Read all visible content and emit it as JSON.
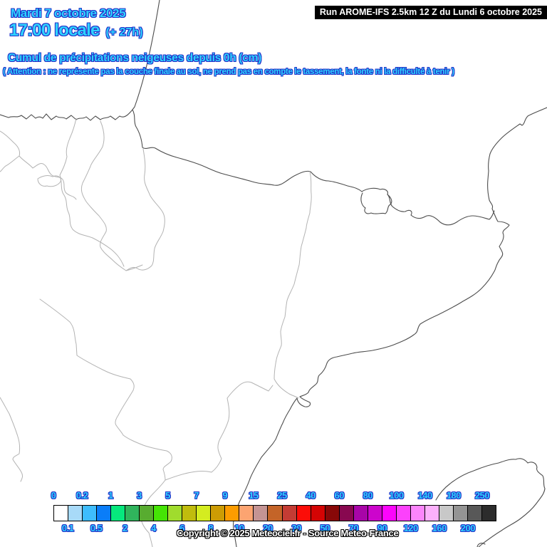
{
  "header": {
    "date": "Mardi 7 octobre 2025",
    "time": "17:00 locale",
    "offset": "(+ 27h)",
    "run": "Run AROME-IFS 2.5km 12 Z du Lundi 6 octobre 2025"
  },
  "title": {
    "main": "Cumul de précipitations neigeuses depuis 0h (cm)",
    "warning": "( Attention : ne représente pas la couche finale au sol, ne prend pas en compte le tassement, la fonte ni la difficulté à tenir )"
  },
  "legend": {
    "unit": "cm",
    "boundaries": [
      "0",
      "0.1",
      "0.2",
      "0.5",
      "1",
      "2",
      "3",
      "4",
      "5",
      "6",
      "7",
      "8",
      "9",
      "10",
      "15",
      "20",
      "25",
      "30",
      "40",
      "50",
      "60",
      "70",
      "80",
      "90",
      "100",
      "120",
      "140",
      "160",
      "180",
      "200",
      "250"
    ],
    "cell_colors": [
      "#FFFFFF",
      "#A8DAF8",
      "#3EBDFD",
      "#0A7DF8",
      "#06E87D",
      "#30B45C",
      "#58AC30",
      "#45E405",
      "#A0DC2D",
      "#C0BC0D",
      "#D4EC20",
      "#CC9C04",
      "#FC9C01",
      "#FCA471",
      "#C49494",
      "#C46428",
      "#C43C34",
      "#FC0D08",
      "#D40404",
      "#880808",
      "#880850",
      "#A805A8",
      "#CC05CC",
      "#FC05FC",
      "#FC41FC",
      "#FC85FC",
      "#FCB1FC",
      "#C8C8C8",
      "#949494",
      "#585858",
      "#2C2C2C"
    ]
  },
  "footer": {
    "copyright": "Copyright © 2025 Meteociel.fr - Source Meteo-France"
  },
  "colors": {
    "text_fill": "#2ED2FE",
    "text_outline": "#2431C8",
    "run_bg": "#000000",
    "run_fg": "#FFFFFF",
    "coast_line": "#4D4D4D",
    "region_line": "#B3B3B3"
  }
}
